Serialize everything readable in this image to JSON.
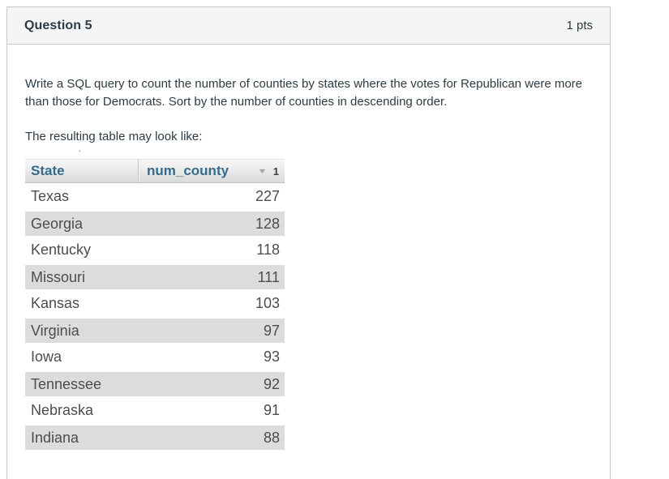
{
  "header": {
    "title": "Question 5",
    "points": "1 pts"
  },
  "body": {
    "paragraph1": "Write a SQL query to count the number of counties by states where the votes for Republican were more than those for Democrats. Sort by the number of counties in descending order.",
    "paragraph2": "The resulting table may look like:",
    "artifact_dot": "."
  },
  "result_table": {
    "columns": [
      {
        "label": "State"
      },
      {
        "label": "num_county",
        "sort_icon": "caret-down-icon",
        "sort_order": "1"
      }
    ],
    "rows": [
      {
        "state": "Texas",
        "num_county": "227"
      },
      {
        "state": "Georgia",
        "num_county": "128"
      },
      {
        "state": "Kentucky",
        "num_county": "118"
      },
      {
        "state": "Missouri",
        "num_county": "111"
      },
      {
        "state": "Kansas",
        "num_county": "103"
      },
      {
        "state": "Virginia",
        "num_county": "97"
      },
      {
        "state": "Iowa",
        "num_county": "93"
      },
      {
        "state": "Tennessee",
        "num_county": "92"
      },
      {
        "state": "Nebraska",
        "num_county": "91"
      },
      {
        "state": "Indiana",
        "num_county": "88"
      }
    ]
  },
  "colors": {
    "accent": "#336b8e",
    "stripe": "#dcdcdc",
    "panel_border": "#c7c7c7",
    "header_bg": "#f5f5f5",
    "text": "#2d3b45"
  }
}
